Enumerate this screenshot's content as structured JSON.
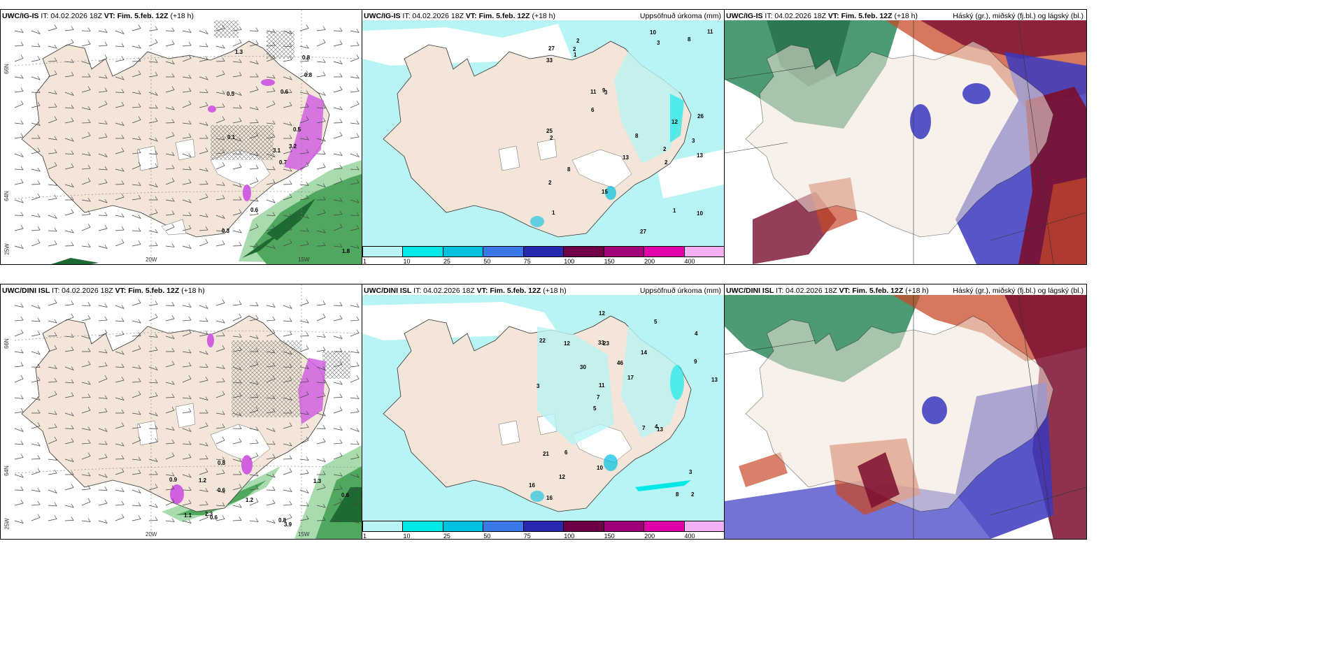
{
  "rows": [
    {
      "model": "UWC/IG-IS",
      "init": "IT: 04.02.2026 18Z",
      "valid": "VT: Fim. 5.feb. 12Z",
      "lead": "(+18 h)",
      "panel2_title": "Uppsöfnuð úrkoma (mm)",
      "panel3_title": "Háský (gr.), miðský (fj.bl.) og lágský (bl.)"
    },
    {
      "model": "UWC/DINI ISL",
      "init": "IT: 04.02.2026 18Z",
      "valid": "VT: Fim. 5.feb. 12Z",
      "lead": "(+18 h)",
      "panel2_title": "Uppsöfnuð úrkoma (mm)",
      "panel3_title": "Háský (gr.), miðský (fj.bl.) og lágský (bl.)"
    }
  ],
  "grid_labels": {
    "lon": [
      "20W",
      "15W"
    ],
    "lat": [
      "66N",
      "64N",
      "25W"
    ]
  },
  "colorbar": {
    "ticks": [
      "1",
      "10",
      "25",
      "50",
      "75",
      "100",
      "150",
      "200",
      "400"
    ],
    "colors": [
      "#b8f4f4",
      "#00e8e8",
      "#00c0e0",
      "#3a78e8",
      "#2828b0",
      "#6e0046",
      "#a0007a",
      "#e000a8",
      "#f4b0f4"
    ]
  },
  "panel1_values_top": [
    "0.7",
    "0.5",
    "3.1",
    "0.3",
    "0.5",
    "0.6",
    "0.8",
    "0.6",
    "0.8",
    "3.2",
    "1.3",
    "1.8",
    "0.1"
  ],
  "panel1_values_bottom": [
    "3.9",
    "0.8",
    "2.3",
    "1.2",
    "1.3",
    "0.8",
    "0.6",
    "0.6",
    "1.2",
    "0.6",
    "1.1",
    "0.9"
  ],
  "panel2_values_top": [
    "2",
    "3",
    "1",
    "2",
    "3",
    "1",
    "2",
    "3",
    "11",
    "27",
    "33",
    "25",
    "27",
    "10",
    "15",
    "26",
    "13",
    "8",
    "9",
    "8",
    "11",
    "8",
    "6",
    "13",
    "10",
    "2",
    "2",
    "2",
    "1",
    "12"
  ],
  "panel2_values_bottom": [
    "2",
    "3",
    "4",
    "5",
    "14",
    "16",
    "33",
    "46",
    "21",
    "30",
    "16",
    "12",
    "23",
    "17",
    "13",
    "22",
    "12",
    "13",
    "7",
    "9",
    "7",
    "10",
    "11",
    "12",
    "5",
    "6",
    "8",
    "3",
    "4"
  ],
  "colors": {
    "land": "#f3e6d8",
    "sea": "#ffffff",
    "precip_light": "#b8f4f4",
    "green_dark": "#1e6a32",
    "green_mid": "#4fa85e",
    "green_light": "#a8dcae",
    "magenta": "#d060e0",
    "high_cloud_green": "#2e8a5a",
    "mid_cloud_red": "#c84a2a",
    "dark_red": "#7a0e2e",
    "low_cloud_blue": "#3838c0"
  }
}
